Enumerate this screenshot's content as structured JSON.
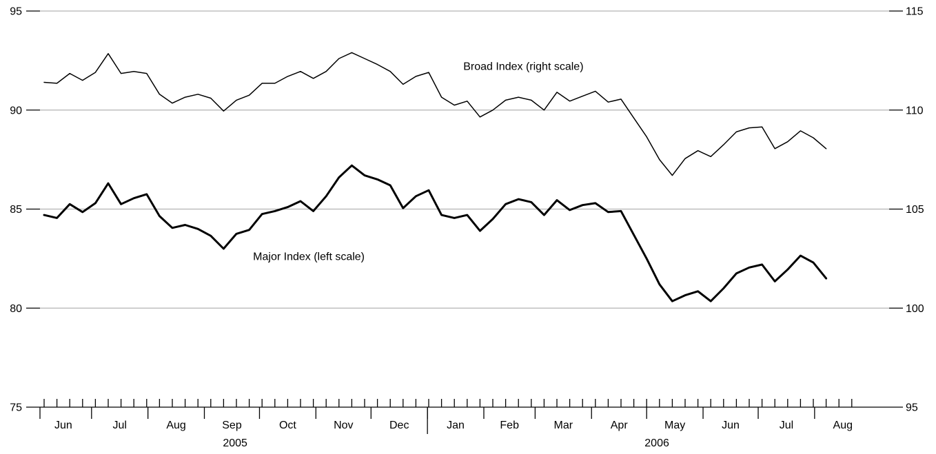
{
  "chart_data": {
    "type": "line",
    "title": "",
    "left_axis": {
      "min": 75,
      "max": 95,
      "ticks": [
        "75",
        "80",
        "85",
        "90",
        "95"
      ]
    },
    "right_axis": {
      "min": 95,
      "max": 115,
      "ticks": [
        "95",
        "100",
        "105",
        "110",
        "115"
      ]
    },
    "grid": "horizontal",
    "x_axis": {
      "weeks_total": 63,
      "month_labels": [
        {
          "label": "Jun",
          "start_week": -0.7,
          "weeks": 4.4
        },
        {
          "label": "Jul",
          "start_week": 3.7,
          "weeks": 4.4
        },
        {
          "label": "Aug",
          "start_week": 8.1,
          "weeks": 4.4
        },
        {
          "label": "Sep",
          "start_week": 12.5,
          "weeks": 4.3
        },
        {
          "label": "Oct",
          "start_week": 16.8,
          "weeks": 4.4
        },
        {
          "label": "Nov",
          "start_week": 21.2,
          "weeks": 4.3
        },
        {
          "label": "Dec",
          "start_week": 25.5,
          "weeks": 4.4
        },
        {
          "label": "Jan",
          "start_week": 29.9,
          "weeks": 4.4
        },
        {
          "label": "Feb",
          "start_week": 34.3,
          "weeks": 4.0
        },
        {
          "label": "Mar",
          "start_week": 38.3,
          "weeks": 4.4
        },
        {
          "label": "Apr",
          "start_week": 42.7,
          "weeks": 4.3
        },
        {
          "label": "May",
          "start_week": 47.0,
          "weeks": 4.4
        },
        {
          "label": "Jun",
          "start_week": 51.4,
          "weeks": 4.3
        },
        {
          "label": "Jul",
          "start_week": 55.7,
          "weeks": 4.4
        },
        {
          "label": "Aug",
          "start_week": 60.1,
          "weeks": 4.4
        }
      ],
      "year_labels": [
        {
          "label": "2005",
          "center_week": 14.9
        },
        {
          "label": "2006",
          "center_week": 47.8
        }
      ],
      "year_divider_week": 29.9
    },
    "series": [
      {
        "name": "Broad Index (right scale)",
        "axis": "right",
        "label_week": 32.7,
        "label_value": 112.2,
        "values": [
          111.4,
          111.35,
          111.85,
          111.5,
          111.9,
          112.85,
          111.85,
          111.95,
          111.85,
          110.8,
          110.35,
          110.65,
          110.8,
          110.6,
          109.95,
          110.5,
          110.75,
          111.35,
          111.35,
          111.7,
          111.95,
          111.6,
          111.95,
          112.6,
          112.9,
          112.6,
          112.3,
          111.95,
          111.3,
          111.7,
          111.9,
          110.65,
          110.25,
          110.45,
          109.65,
          110.0,
          110.5,
          110.65,
          110.5,
          110.0,
          110.9,
          110.45,
          110.7,
          110.95,
          110.4,
          110.55,
          109.6,
          108.65,
          107.5,
          106.7,
          107.55,
          107.95,
          107.65,
          108.25,
          108.9,
          109.1,
          109.15,
          108.05,
          108.4,
          108.95,
          108.6,
          108.05
        ]
      },
      {
        "name": "Major Index (left scale)",
        "axis": "left",
        "label_week": 16.3,
        "label_value": 82.6,
        "values": [
          84.7,
          84.55,
          85.25,
          84.85,
          85.3,
          86.3,
          85.25,
          85.55,
          85.75,
          84.65,
          84.05,
          84.2,
          84.0,
          83.65,
          83.0,
          83.75,
          83.95,
          84.75,
          84.9,
          85.1,
          85.4,
          84.9,
          85.65,
          86.6,
          87.2,
          86.7,
          86.5,
          86.2,
          85.05,
          85.65,
          85.95,
          84.7,
          84.55,
          84.7,
          83.9,
          84.5,
          85.25,
          85.5,
          85.35,
          84.7,
          85.45,
          84.95,
          85.2,
          85.3,
          84.85,
          84.9,
          83.7,
          82.5,
          81.2,
          80.35,
          80.65,
          80.85,
          80.35,
          81.0,
          81.75,
          82.05,
          82.2,
          81.35,
          81.95,
          82.65,
          82.3,
          81.5
        ]
      }
    ]
  }
}
